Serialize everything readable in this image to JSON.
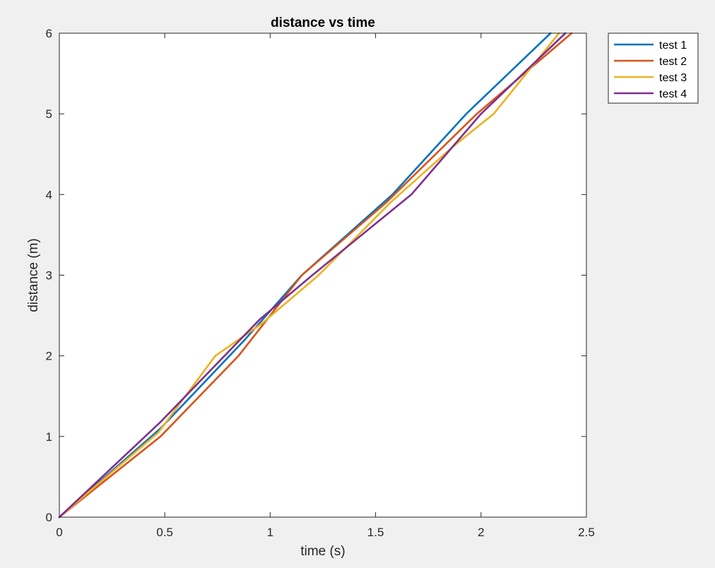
{
  "chart_data": {
    "type": "line",
    "title": "distance vs time",
    "xlabel": "time (s)",
    "ylabel": "distance (m)",
    "xlim": [
      0,
      2.5
    ],
    "ylim": [
      0,
      6
    ],
    "xticks": [
      0,
      0.5,
      1,
      1.5,
      2,
      2.5
    ],
    "xtick_labels": [
      "0",
      "0.5",
      "1",
      "1.5",
      "2",
      "2.5"
    ],
    "yticks": [
      0,
      1,
      2,
      3,
      4,
      5,
      6
    ],
    "ytick_labels": [
      "0",
      "1",
      "2",
      "3",
      "4",
      "5",
      "6"
    ],
    "grid": false,
    "legend_position": "outside-top-right",
    "series": [
      {
        "name": "test 1",
        "color": "#0072BD",
        "x": [
          0,
          0.48,
          0.88,
          1.15,
          1.58,
          1.93,
          2.33
        ],
        "y": [
          0,
          1.1,
          2.2,
          3.0,
          4.0,
          5.0,
          6.0
        ]
      },
      {
        "name": "test 2",
        "color": "#D95319",
        "x": [
          0,
          0.48,
          0.85,
          1.15,
          1.55,
          1.98,
          2.43
        ],
        "y": [
          0,
          1.0,
          2.0,
          3.0,
          3.9,
          5.0,
          6.0
        ]
      },
      {
        "name": "test 3",
        "color": "#EDB120",
        "x": [
          0,
          0.47,
          0.74,
          0.96,
          1.23,
          1.57,
          1.87,
          2.06,
          2.37
        ],
        "y": [
          0,
          1.05,
          2.0,
          2.4,
          3.0,
          3.9,
          4.6,
          5.0,
          6.0
        ]
      },
      {
        "name": "test 4",
        "color": "#7E2F8E",
        "x": [
          0,
          0.48,
          0.95,
          1.2,
          1.67,
          2.0,
          2.4
        ],
        "y": [
          0,
          1.18,
          2.45,
          3.0,
          4.0,
          5.0,
          6.0
        ]
      }
    ]
  }
}
